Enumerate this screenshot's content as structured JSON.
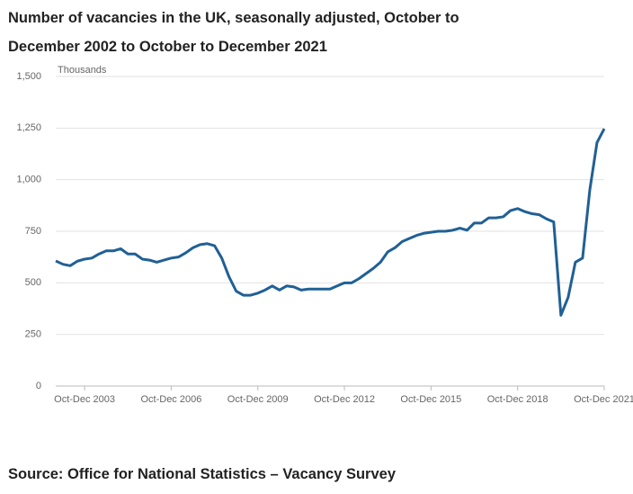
{
  "chart_data": {
    "type": "line",
    "title": "Number of vacancies in the UK, seasonally adjusted, October to December 2002 to October to December 2021",
    "y_label": "Thousands",
    "source": "Source: Office for National Statistics – Vacancy Survey",
    "categories": [
      null,
      null,
      null,
      null,
      "Oct-Dec 2003",
      null,
      null,
      null,
      null,
      null,
      null,
      null,
      null,
      null,
      null,
      null,
      "Oct-Dec 2006",
      null,
      null,
      null,
      null,
      null,
      null,
      null,
      null,
      null,
      null,
      null,
      "Oct-Dec 2009",
      null,
      null,
      null,
      null,
      null,
      null,
      null,
      null,
      null,
      null,
      null,
      "Oct-Dec 2012",
      null,
      null,
      null,
      null,
      null,
      null,
      null,
      null,
      null,
      null,
      null,
      "Oct-Dec 2015",
      null,
      null,
      null,
      null,
      null,
      null,
      null,
      null,
      null,
      null,
      null,
      "Oct-Dec 2018",
      null,
      null,
      null,
      null,
      null,
      null,
      null,
      null,
      null,
      null,
      null,
      "Oct-Dec 2021"
    ],
    "series": [
      {
        "name": "Vacancies",
        "color": "#206095",
        "values": [
          606,
          590,
          583,
          605,
          615,
          620,
          640,
          655,
          655,
          665,
          640,
          640,
          615,
          610,
          600,
          610,
          620,
          625,
          645,
          670,
          685,
          690,
          680,
          620,
          530,
          460,
          440,
          440,
          450,
          465,
          485,
          465,
          485,
          480,
          465,
          470,
          470,
          470,
          470,
          485,
          500,
          500,
          520,
          545,
          570,
          600,
          650,
          670,
          700,
          715,
          730,
          740,
          745,
          750,
          750,
          755,
          765,
          755,
          790,
          790,
          815,
          815,
          820,
          850,
          860,
          845,
          835,
          830,
          810,
          795,
          343,
          430,
          600,
          620,
          950,
          1180,
          1247
        ]
      }
    ],
    "ylim": [
      0,
      1500
    ],
    "yticks": [
      0,
      250,
      {
        "value": 500,
        "label": "500"
      },
      750,
      {
        "value": 1000,
        "label": "1,000"
      },
      {
        "value": 1250,
        "label": "1,250"
      },
      {
        "value": 1500,
        "label": "1,500"
      }
    ],
    "grid": true
  }
}
